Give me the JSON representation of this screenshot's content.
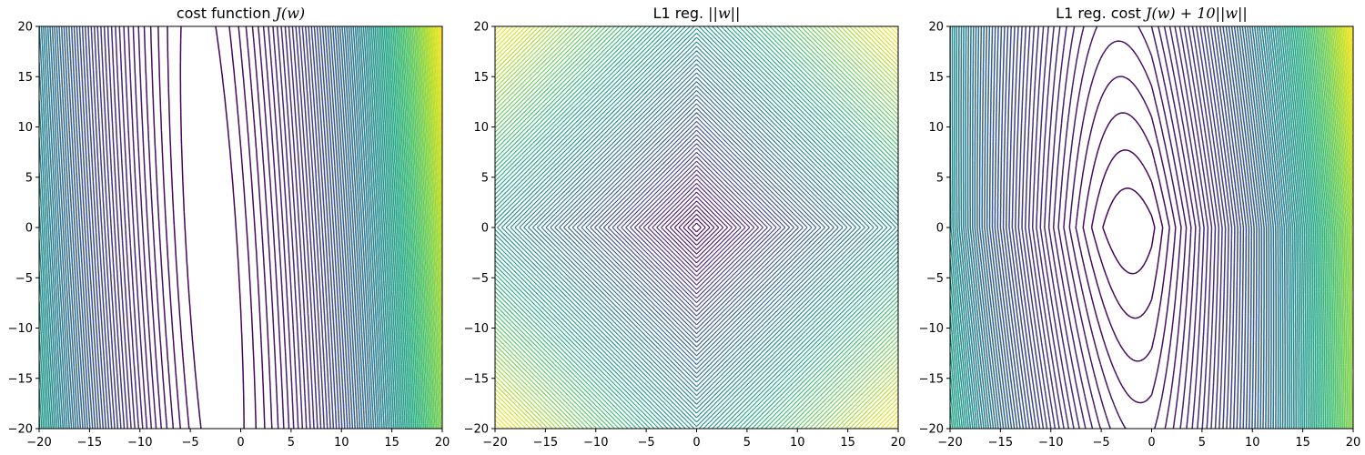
{
  "chart_data": [
    {
      "type": "contour",
      "title": "cost function J(w)",
      "title_parts": {
        "plain": "cost function ",
        "math": "J(w)"
      },
      "xlim": [
        -20,
        20
      ],
      "ylim": [
        -20,
        20
      ],
      "xticks": [
        -20,
        -15,
        -10,
        -5,
        0,
        5,
        10,
        15,
        20
      ],
      "yticks": [
        -20,
        -15,
        -10,
        -5,
        0,
        5,
        10,
        15,
        20
      ],
      "colormap": "viridis",
      "function": "elongated quadratic bowl; minimum near w1≈-2 (lower) to -4 (upper), steep along w1, shallow along w2",
      "levels": 90,
      "grid": false
    },
    {
      "type": "contour",
      "title": "L1 reg. ||w||",
      "title_parts": {
        "plain": "L1 reg. ",
        "math": "||w||"
      },
      "xlim": [
        -20,
        20
      ],
      "ylim": [
        -20,
        20
      ],
      "xticks": [
        -20,
        -15,
        -10,
        -5,
        0,
        5,
        10,
        15,
        20
      ],
      "yticks": [
        -20,
        -15,
        -10,
        -5,
        0,
        5,
        10,
        15,
        20
      ],
      "colormap": "viridis",
      "function": "|w1| + |w2| (diamond contours, minimum at origin)",
      "levels": 90,
      "grid": false
    },
    {
      "type": "contour",
      "title": "L1 reg. cost J(w) + 10||w||",
      "title_parts": {
        "plain": "L1 reg. cost ",
        "math": "J(w) + 10||w||"
      },
      "xlim": [
        -20,
        20
      ],
      "ylim": [
        -20,
        20
      ],
      "xticks": [
        -20,
        -15,
        -10,
        -5,
        0,
        5,
        10,
        15,
        20
      ],
      "yticks": [
        -20,
        -15,
        -10,
        -5,
        0,
        5,
        10,
        15,
        20
      ],
      "colormap": "viridis",
      "function": "J(w) + 10·(|w1| + |w2|)",
      "levels": 90,
      "grid": false
    }
  ]
}
